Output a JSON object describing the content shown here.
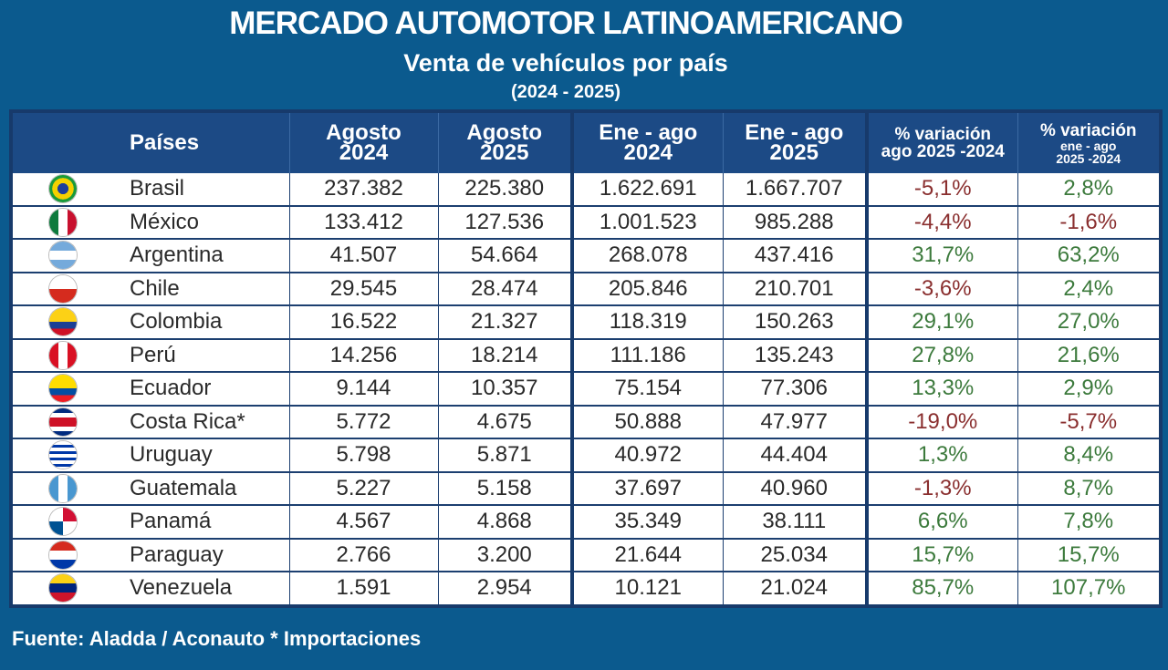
{
  "header": {
    "title": "MERCADO AUTOMOTOR LATINOAMERICANO",
    "subtitle": "Venta de vehículos por país",
    "period": "(2024 - 2025)"
  },
  "table": {
    "columns": [
      [
        "Países"
      ],
      [
        "Agosto",
        "2024"
      ],
      [
        "Agosto",
        "2025"
      ],
      [
        "Ene - ago",
        "2024"
      ],
      [
        "Ene - ago",
        "2025"
      ],
      [
        "% variación",
        "ago 2025 -2024"
      ],
      [
        "% variación",
        "ene - ago",
        "2025 -2024"
      ]
    ],
    "rows": [
      [
        "Brasil",
        "237.382",
        "225.380",
        "1.622.691",
        "1.667.707",
        "-5,1%",
        "2,8%"
      ],
      [
        "México",
        "133.412",
        "127.536",
        "1.001.523",
        "985.288",
        "-4,4%",
        "-1,6%"
      ],
      [
        "Argentina",
        "41.507",
        "54.664",
        "268.078",
        "437.416",
        "31,7%",
        "63,2%"
      ],
      [
        "Chile",
        "29.545",
        "28.474",
        "205.846",
        "210.701",
        "-3,6%",
        "2,4%"
      ],
      [
        "Colombia",
        "16.522",
        "21.327",
        "118.319",
        "150.263",
        "29,1%",
        "27,0%"
      ],
      [
        "Perú",
        "14.256",
        "18.214",
        "111.186",
        "135.243",
        "27,8%",
        "21,6%"
      ],
      [
        "Ecuador",
        "9.144",
        "10.357",
        "75.154",
        "77.306",
        "13,3%",
        "2,9%"
      ],
      [
        "Costa Rica*",
        "5.772",
        "4.675",
        "50.888",
        "47.977",
        "-19,0%",
        "-5,7%"
      ],
      [
        "Uruguay",
        "5.798",
        "5.871",
        "40.972",
        "44.404",
        "1,3%",
        "8,4%"
      ],
      [
        "Guatemala",
        "5.227",
        "5.158",
        "37.697",
        "40.960",
        "-1,3%",
        "8,7%"
      ],
      [
        "Panamá",
        "4.567",
        "4.868",
        "35.349",
        "38.111",
        "6,6%",
        "7,8%"
      ],
      [
        "Paraguay",
        "2.766",
        "3.200",
        "21.644",
        "25.034",
        "15,7%",
        "15,7%"
      ],
      [
        "Venezuela",
        "1.591",
        "2.954",
        "10.121",
        "21.024",
        "85,7%",
        "107,7%"
      ]
    ]
  },
  "footer": {
    "source": "Fuente: Aladda / Aconauto * Importaciones"
  }
}
